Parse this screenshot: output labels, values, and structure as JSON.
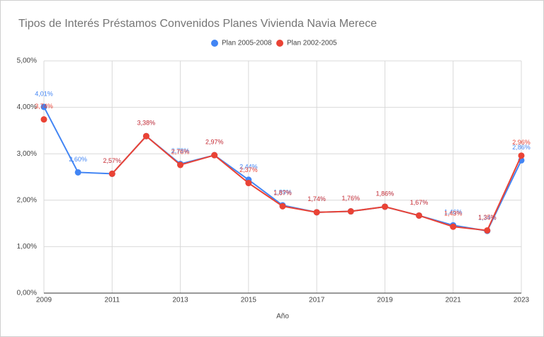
{
  "chart_data": {
    "type": "line",
    "title": "Tipos de Interés Préstamos Convenidos Planes Vivienda Navia Merece",
    "x_label": "Año",
    "x": [
      2009,
      2010,
      2011,
      2012,
      2013,
      2014,
      2015,
      2016,
      2017,
      2018,
      2019,
      2020,
      2021,
      2022,
      2023
    ],
    "xlim": [
      2009,
      2023
    ],
    "xticks": [
      2009,
      2011,
      2013,
      2015,
      2017,
      2019,
      2021,
      2023
    ],
    "ylim": [
      0,
      5
    ],
    "yticks": [
      {
        "value": 0,
        "label": "0,00%"
      },
      {
        "value": 1,
        "label": "1,00%"
      },
      {
        "value": 2,
        "label": "2,00%"
      },
      {
        "value": 3,
        "label": "3,00%"
      },
      {
        "value": 4,
        "label": "4,00%"
      },
      {
        "value": 5,
        "label": "5,00%"
      }
    ],
    "grid": true,
    "legend": "top",
    "series": [
      {
        "name": "Plan 2005-2008",
        "color": "#4285f4",
        "values": [
          4.01,
          2.6,
          2.57,
          3.38,
          2.78,
          2.97,
          2.44,
          1.89,
          1.74,
          1.76,
          1.86,
          1.67,
          1.46,
          1.34,
          2.86
        ],
        "value_labels": [
          "4,01%",
          "2,60%",
          "2,57%",
          "3,38%",
          "2,78%",
          "2,97%",
          "2,44%",
          "1,89%",
          "1,74%",
          "1,76%",
          "1,86%",
          "1,67%",
          "1,46%",
          "1,34%",
          "2,86%"
        ]
      },
      {
        "name": "Plan 2002-2005",
        "color": "#ea4335",
        "values": [
          3.74,
          null,
          2.57,
          3.38,
          2.76,
          2.97,
          2.37,
          1.87,
          1.74,
          1.76,
          1.86,
          1.67,
          1.43,
          1.35,
          2.96
        ],
        "value_labels": [
          "3,74%",
          null,
          "2,57%",
          "3,38%",
          "2,76%",
          "2,97%",
          "2,37%",
          "1,87%",
          "1,74%",
          "1,76%",
          "1,86%",
          "1,67%",
          "1,43%",
          "1,35%",
          "2,96%"
        ]
      }
    ]
  }
}
